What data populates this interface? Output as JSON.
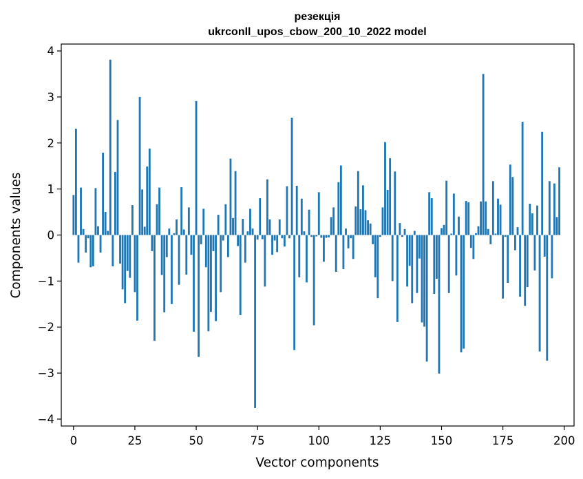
{
  "chart_data": {
    "type": "bar",
    "title": "резекція",
    "subtitle": "ukrconll_upos_cbow_200_10_2022 model",
    "xlabel": "Vector components",
    "ylabel": "Components values",
    "xlim": [
      -5,
      204
    ],
    "ylim": [
      -4.15,
      4.15
    ],
    "xticks": [
      0,
      25,
      50,
      75,
      100,
      125,
      150,
      175,
      200
    ],
    "yticks": [
      -4,
      -3,
      -2,
      -1,
      0,
      1,
      2,
      3,
      4
    ],
    "ytick_labels": [
      "−4",
      "−3",
      "−2",
      "−1",
      "0",
      "1",
      "2",
      "3",
      "4"
    ],
    "bar_color": "#1f77b4",
    "grid": false,
    "values": [
      0.87,
      2.31,
      -0.6,
      1.03,
      0.13,
      -0.38,
      -0.07,
      -0.7,
      -0.68,
      1.02,
      0.19,
      -0.38,
      1.79,
      0.5,
      0.09,
      3.81,
      -0.68,
      1.37,
      2.5,
      -0.62,
      -1.18,
      -1.48,
      -0.78,
      -0.93,
      0.65,
      -1.24,
      -1.86,
      3.0,
      0.99,
      0.18,
      1.49,
      1.88,
      -0.35,
      -2.3,
      0.67,
      1.03,
      -0.87,
      -1.68,
      -0.48,
      0.14,
      -1.5,
      0.04,
      0.34,
      -1.08,
      1.04,
      0.12,
      -0.86,
      0.6,
      -0.43,
      -2.1,
      2.91,
      -2.65,
      -0.2,
      0.57,
      -0.7,
      -2.09,
      -1.67,
      -0.35,
      -1.87,
      0.44,
      -1.24,
      -0.12,
      0.67,
      -0.48,
      1.66,
      0.37,
      1.39,
      -0.24,
      -1.74,
      0.35,
      -0.6,
      0.08,
      0.57,
      0.14,
      -3.76,
      -0.1,
      0.8,
      -0.09,
      -1.12,
      1.21,
      0.34,
      -0.43,
      -0.12,
      -0.37,
      0.34,
      -0.07,
      -0.25,
      1.06,
      -0.07,
      2.55,
      -2.5,
      1.07,
      -0.92,
      0.79,
      0.08,
      -1.03,
      0.55,
      -0.04,
      -1.96,
      -0.03,
      0.93,
      -0.06,
      -0.58,
      -0.06,
      -0.05,
      0.39,
      0.6,
      -0.8,
      1.15,
      1.51,
      -0.74,
      0.14,
      -0.29,
      -0.07,
      -0.52,
      0.62,
      1.39,
      0.56,
      1.08,
      0.54,
      0.32,
      0.25,
      -0.2,
      -0.92,
      -1.37,
      -0.04,
      0.6,
      2.02,
      0.98,
      1.67,
      -1.0,
      1.38,
      -1.89,
      0.26,
      -0.04,
      0.13,
      -1.12,
      -0.67,
      -1.48,
      0.09,
      -1.26,
      -0.51,
      -1.9,
      -1.99,
      -2.75,
      0.93,
      0.8,
      -1.28,
      -0.95,
      -3.01,
      0.15,
      0.22,
      1.18,
      -1.26,
      0.03,
      0.9,
      -0.88,
      0.4,
      -2.55,
      -2.47,
      0.74,
      0.71,
      -0.28,
      -0.52,
      0.04,
      0.19,
      0.73,
      3.5,
      0.73,
      0.13,
      -0.2,
      1.17,
      0.03,
      0.79,
      0.66,
      -1.38,
      -0.04,
      -1.04,
      1.53,
      1.26,
      -0.33,
      0.17,
      -1.34,
      2.46,
      -1.54,
      -1.13,
      0.68,
      0.47,
      -0.77,
      0.64,
      -2.53,
      2.24,
      -0.47,
      -2.73,
      1.17,
      -0.94,
      1.12,
      0.39,
      1.47
    ]
  }
}
